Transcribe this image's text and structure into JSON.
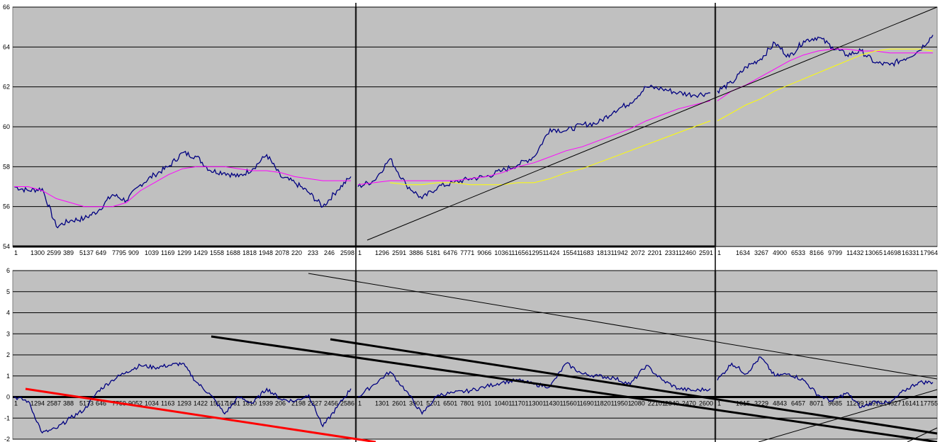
{
  "chart_data": [
    {
      "type": "line",
      "panel": "top",
      "title": "",
      "xlabel": "",
      "ylabel": "",
      "ylim": [
        54,
        66
      ],
      "y_ticks": [
        "54",
        "56",
        "58",
        "60",
        "62",
        "64",
        "66"
      ],
      "grid": true,
      "background": "#c0c0c0",
      "segments": [
        {
          "x_ticks": [
            "1",
            "1300",
            "2599",
            "389",
            "5137",
            "649",
            "7795",
            "909",
            "1039",
            "1169",
            "1299",
            "1429",
            "1558",
            "1688",
            "1818",
            "1948",
            "2078",
            "220",
            "233",
            "246",
            "2598"
          ],
          "series": [
            {
              "color": "#000080",
              "values": [
                57.0,
                56.8,
                56.9,
                55.0,
                55.3,
                55.4,
                55.8,
                56.6,
                56.3,
                57.1,
                57.6,
                58.0,
                58.7,
                58.5,
                57.8,
                57.7,
                57.5,
                57.9,
                58.6,
                57.5,
                57.2,
                56.7,
                56.0,
                56.8,
                57.5
              ]
            },
            {
              "color": "#ff00ff",
              "values": [
                57.0,
                57.0,
                56.8,
                56.4,
                56.2,
                56.0,
                56.0,
                56.0,
                56.2,
                56.8,
                57.2,
                57.6,
                57.9,
                58.0,
                58.0,
                58.0,
                57.9,
                57.8,
                57.8,
                57.7,
                57.5,
                57.4,
                57.3,
                57.3,
                57.3
              ]
            }
          ]
        },
        {
          "x_ticks": [
            "1",
            "1296",
            "2591",
            "3886",
            "5181",
            "6476",
            "7771",
            "9066",
            "10361",
            "11656",
            "12951",
            "1424",
            "15541",
            "1683",
            "18131",
            "1942",
            "2072",
            "2201",
            "23311",
            "2460",
            "2591"
          ],
          "series": [
            {
              "color": "#000080",
              "values": [
                57.0,
                57.3,
                58.4,
                57.1,
                56.4,
                57.0,
                57.2,
                57.4,
                57.5,
                57.8,
                58.1,
                58.5,
                59.9,
                59.8,
                60.1,
                60.2,
                60.8,
                61.2,
                62.0,
                61.9,
                61.7,
                61.6,
                61.7
              ]
            },
            {
              "color": "#ff00ff",
              "values": [
                57.1,
                57.2,
                57.3,
                57.3,
                57.3,
                57.3,
                57.3,
                57.4,
                57.5,
                57.7,
                58.0,
                58.2,
                58.5,
                58.8,
                59.0,
                59.3,
                59.6,
                59.9,
                60.3,
                60.6,
                60.9,
                61.1,
                61.3
              ]
            },
            {
              "color": "#ffff00",
              "values": [
                null,
                null,
                57.2,
                57.1,
                57.1,
                57.2,
                57.2,
                57.1,
                57.1,
                57.1,
                57.2,
                57.2,
                57.4,
                57.7,
                57.9,
                58.2,
                58.5,
                58.8,
                59.1,
                59.4,
                59.7,
                60.0,
                60.3
              ]
            }
          ]
        },
        {
          "x_ticks": [
            "1",
            "1634",
            "3267",
            "4900",
            "6533",
            "8166",
            "9799",
            "11432",
            "13065",
            "14698",
            "16331",
            "17964"
          ],
          "series": [
            {
              "color": "#000080",
              "values": [
                61.8,
                62.2,
                63.0,
                63.4,
                64.2,
                63.5,
                64.3,
                64.5,
                64.0,
                63.6,
                63.8,
                63.2,
                63.1,
                63.4,
                63.8,
                64.6
              ]
            },
            {
              "color": "#ff00ff",
              "values": [
                61.3,
                61.8,
                62.1,
                62.5,
                62.9,
                63.3,
                63.6,
                63.8,
                63.9,
                63.9,
                63.8,
                63.8,
                63.7,
                63.7,
                63.7,
                63.7
              ]
            },
            {
              "color": "#ffff00",
              "values": [
                60.3,
                60.7,
                61.1,
                61.4,
                61.8,
                62.1,
                62.4,
                62.7,
                63.0,
                63.3,
                63.6,
                63.8,
                63.9,
                63.9,
                63.9,
                63.8
              ]
            }
          ]
        }
      ]
    },
    {
      "type": "line",
      "panel": "bottom",
      "title": "",
      "xlabel": "",
      "ylabel": "",
      "ylim": [
        -2,
        6
      ],
      "y_ticks": [
        "-2",
        "-1",
        "0",
        "1",
        "2",
        "3",
        "4",
        "5",
        "6"
      ],
      "grid": true,
      "background": "#c0c0c0",
      "segments": [
        {
          "x_ticks": [
            "1",
            "1294",
            "2587",
            "388",
            "5173",
            "646",
            "7759",
            "9052",
            "1034",
            "1163",
            "1293",
            "1422",
            "15517",
            "1681",
            "1810",
            "1939",
            "206",
            "2198",
            "2327",
            "2456",
            "2586"
          ],
          "series": [
            {
              "color": "#000080",
              "values": [
                0.0,
                -0.2,
                -1.7,
                -1.5,
                -1.0,
                -0.6,
                0.3,
                0.8,
                1.2,
                1.5,
                1.4,
                1.5,
                1.6,
                0.7,
                0.1,
                -0.8,
                0.0,
                -0.3,
                0.4,
                -0.1,
                -0.2,
                0.1,
                -1.4,
                -0.5,
                0.4
              ]
            }
          ]
        },
        {
          "x_ticks": [
            "1",
            "1301",
            "2601",
            "3901",
            "5201",
            "6501",
            "7801",
            "9101",
            "10401",
            "11701",
            "13001",
            "14301",
            "15601",
            "16901",
            "18201",
            "19501",
            "2080",
            "22101",
            "2340",
            "2470",
            "2600"
          ],
          "series": [
            {
              "color": "#000080",
              "values": [
                0.0,
                0.6,
                1.2,
                0.3,
                -0.8,
                0.1,
                0.2,
                0.3,
                0.5,
                0.7,
                0.8,
                0.6,
                0.5,
                1.6,
                1.1,
                1.0,
                0.9,
                0.6,
                1.5,
                0.8,
                0.4,
                0.3,
                0.4
              ]
            }
          ]
        },
        {
          "x_ticks": [
            "1",
            "1615",
            "3229",
            "4843",
            "6457",
            "8071",
            "9685",
            "11299",
            "12913",
            "14527",
            "16141",
            "17755"
          ],
          "series": [
            {
              "color": "#000080",
              "values": [
                0.8,
                1.6,
                1.1,
                1.9,
                1.0,
                1.1,
                0.8,
                0.1,
                -0.2,
                0.2,
                -0.5,
                -0.2,
                -0.3,
                0.3,
                0.7,
                0.7
              ]
            }
          ]
        }
      ]
    }
  ]
}
